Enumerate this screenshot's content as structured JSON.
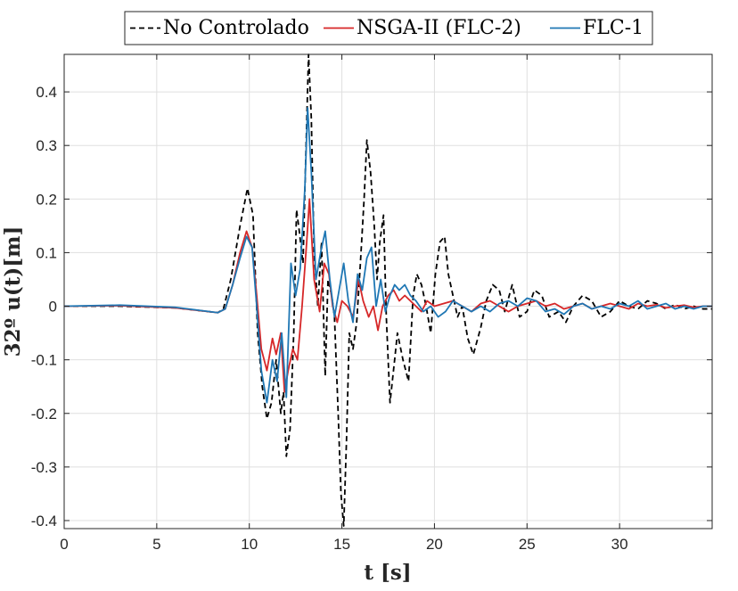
{
  "chart_data": {
    "type": "line",
    "title": "",
    "xlabel": "t [s]",
    "ylabel": "32º u(t)[m]",
    "xlim": [
      0,
      35
    ],
    "ylim": [
      -0.415,
      0.47
    ],
    "xticks": [
      0,
      5,
      10,
      15,
      20,
      25,
      30
    ],
    "yticks": [
      -0.4,
      -0.3,
      -0.2,
      -0.1,
      0,
      0.1,
      0.2,
      0.3,
      0.4
    ],
    "grid": true,
    "legend_position": "top",
    "legend": [
      "No Controlado",
      "NSGA-II (FLC-2)",
      "FLC-1"
    ],
    "series": [
      {
        "name": "No Controlado",
        "color": "#000000",
        "dash": "dashed",
        "x": [
          0,
          3,
          6,
          8.3,
          8.6,
          9,
          9.5,
          9.9,
          10.2,
          10.45,
          10.7,
          10.95,
          11.2,
          11.45,
          11.7,
          11.85,
          12,
          12.2,
          12.4,
          12.55,
          12.7,
          12.9,
          13.05,
          13.2,
          13.35,
          13.5,
          13.7,
          13.9,
          14.1,
          14.25,
          14.45,
          14.6,
          14.8,
          14.95,
          15.1,
          15.25,
          15.4,
          15.6,
          15.8,
          16,
          16.2,
          16.35,
          16.55,
          16.75,
          16.9,
          17.05,
          17.25,
          17.4,
          17.6,
          17.85,
          18,
          18.3,
          18.6,
          18.85,
          19.05,
          19.3,
          19.55,
          19.8,
          20.05,
          20.3,
          20.55,
          20.75,
          21,
          21.25,
          21.5,
          21.8,
          22.1,
          22.5,
          22.8,
          23.15,
          23.5,
          23.8,
          24.2,
          24.6,
          25,
          25.4,
          25.8,
          26.2,
          26.7,
          27.1,
          27.5,
          28,
          28.5,
          29,
          29.5,
          30,
          30.5,
          31,
          31.5,
          32,
          32.5,
          33,
          33.5,
          34,
          34.5,
          35
        ],
        "y": [
          0,
          0,
          -0.003,
          -0.012,
          -0.005,
          0.05,
          0.15,
          0.22,
          0.17,
          -0.05,
          -0.15,
          -0.21,
          -0.18,
          -0.1,
          -0.2,
          -0.16,
          -0.28,
          -0.23,
          -0.05,
          0.18,
          0.14,
          0.08,
          0.28,
          0.47,
          0.35,
          0.1,
          0.0,
          0.12,
          -0.13,
          0.05,
          0.02,
          -0.02,
          -0.2,
          -0.35,
          -0.41,
          -0.25,
          -0.05,
          -0.08,
          -0.03,
          0.08,
          0.2,
          0.31,
          0.25,
          0.15,
          0.05,
          0.12,
          0.17,
          -0.02,
          -0.18,
          -0.1,
          -0.05,
          -0.1,
          -0.14,
          0.02,
          0.06,
          0.04,
          0.0,
          -0.05,
          0.06,
          0.12,
          0.13,
          0.06,
          0.02,
          -0.02,
          0.0,
          -0.06,
          -0.09,
          -0.04,
          0.01,
          0.04,
          0.03,
          -0.01,
          0.04,
          -0.02,
          -0.01,
          0.03,
          0.02,
          -0.02,
          -0.01,
          -0.03,
          0.0,
          0.02,
          0.01,
          -0.02,
          -0.01,
          0.01,
          0.0,
          -0.005,
          0.01,
          0.005,
          -0.005,
          0.003,
          -0.005,
          0.0,
          -0.005,
          -0.005
        ]
      },
      {
        "name": "NSGA-II (FLC-2)",
        "color": "#d62728",
        "dash": "solid",
        "x": [
          0,
          3,
          6,
          8.3,
          8.7,
          9.1,
          9.5,
          9.85,
          10.15,
          10.4,
          10.65,
          10.95,
          11.25,
          11.45,
          11.7,
          11.9,
          12.1,
          12.35,
          12.6,
          12.85,
          13.1,
          13.25,
          13.5,
          13.8,
          14.05,
          14.3,
          14.5,
          14.75,
          15,
          15.3,
          15.6,
          15.9,
          16.15,
          16.45,
          16.7,
          16.95,
          17.2,
          17.5,
          17.8,
          18.1,
          18.4,
          18.7,
          19,
          19.3,
          19.6,
          20,
          20.5,
          21,
          21.5,
          22,
          22.5,
          23,
          23.5,
          24,
          24.5,
          25,
          25.5,
          26,
          26.5,
          27,
          27.5,
          28,
          28.5,
          29,
          29.5,
          30,
          30.5,
          31,
          31.5,
          32,
          32.5,
          33,
          33.5,
          34,
          34.5,
          35
        ],
        "y": [
          0,
          0.001,
          -0.003,
          -0.012,
          -0.005,
          0.04,
          0.1,
          0.14,
          0.11,
          0.02,
          -0.08,
          -0.12,
          -0.06,
          -0.09,
          -0.05,
          -0.16,
          -0.12,
          -0.08,
          -0.1,
          0.0,
          0.12,
          0.2,
          0.05,
          -0.01,
          0.08,
          0.06,
          0.0,
          -0.03,
          0.01,
          0.0,
          -0.02,
          0.05,
          0.01,
          -0.02,
          0.0,
          -0.045,
          0.0,
          0.02,
          0.03,
          0.01,
          0.02,
          0.01,
          0.0,
          -0.01,
          0.01,
          0.0,
          0.005,
          0.01,
          0.0,
          -0.01,
          0.005,
          0.01,
          0.0,
          -0.01,
          0.0,
          0.005,
          0.01,
          0.0,
          0.005,
          -0.005,
          0.0,
          0.005,
          -0.005,
          0.0,
          0.005,
          0.0,
          -0.005,
          0.005,
          0.0,
          0.003,
          -0.003,
          0.0,
          0.002,
          -0.002,
          0.0,
          0.0
        ]
      },
      {
        "name": "FLC-1",
        "color": "#1f77b4",
        "dash": "solid",
        "x": [
          0,
          3,
          6,
          8.3,
          8.7,
          9.1,
          9.5,
          9.85,
          10.15,
          10.4,
          10.65,
          10.95,
          11.25,
          11.5,
          11.75,
          12,
          12.25,
          12.5,
          12.75,
          13,
          13.15,
          13.35,
          13.6,
          13.85,
          14.1,
          14.35,
          14.6,
          14.85,
          15.1,
          15.35,
          15.6,
          15.85,
          16.1,
          16.35,
          16.6,
          16.85,
          17.1,
          17.35,
          17.6,
          17.85,
          18.1,
          18.4,
          18.7,
          19,
          19.4,
          19.8,
          20.2,
          20.6,
          21,
          21.5,
          22,
          22.5,
          23,
          23.5,
          24,
          24.5,
          25,
          25.5,
          26,
          26.5,
          27,
          27.5,
          28,
          28.5,
          29,
          29.5,
          30,
          30.5,
          31,
          31.5,
          32,
          32.5,
          33,
          33.5,
          34,
          34.5,
          35
        ],
        "y": [
          0,
          0.002,
          -0.002,
          -0.012,
          -0.005,
          0.04,
          0.09,
          0.13,
          0.11,
          0.0,
          -0.12,
          -0.18,
          -0.1,
          -0.14,
          -0.05,
          -0.17,
          0.08,
          0.02,
          0.07,
          0.22,
          0.37,
          0.25,
          0.05,
          0.1,
          0.14,
          0.05,
          -0.02,
          0.03,
          0.08,
          0.01,
          -0.03,
          0.06,
          0.03,
          0.09,
          0.11,
          0.0,
          0.05,
          -0.01,
          0.02,
          0.04,
          0.03,
          0.04,
          0.02,
          0.01,
          -0.01,
          0.0,
          -0.02,
          -0.01,
          0.01,
          0.0,
          -0.01,
          0.0,
          -0.01,
          0.005,
          0.01,
          0.0,
          0.015,
          0.01,
          -0.01,
          -0.005,
          -0.015,
          0.0,
          0.005,
          -0.005,
          0.0,
          -0.005,
          0.005,
          0.0,
          0.01,
          -0.005,
          0.0,
          0.005,
          -0.005,
          0.0,
          -0.005,
          0.0,
          0.0
        ]
      }
    ]
  }
}
